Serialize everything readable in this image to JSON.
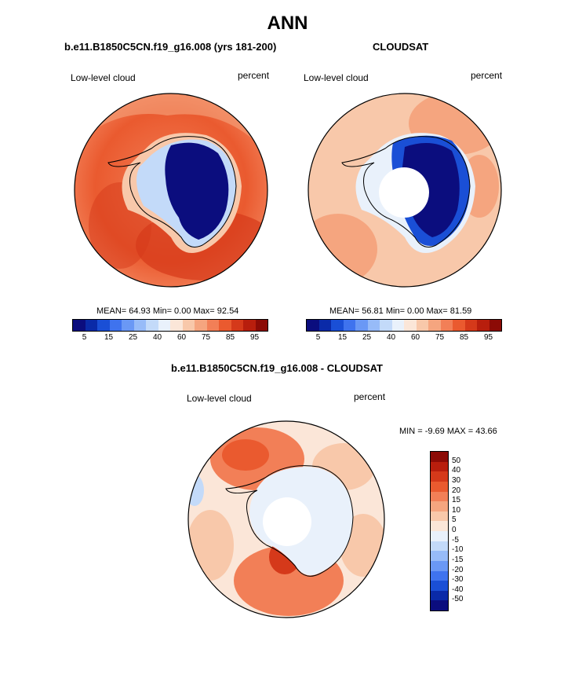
{
  "title": "ANN",
  "panels": [
    {
      "title": "b.e11.B1850C5CN.f19_g16.008 (yrs 181-200)",
      "left_label": "Low-level cloud",
      "right_label": "percent",
      "stats": "MEAN= 64.93  Min=   0.00  Max=  92.54"
    },
    {
      "title": "CLOUDSAT",
      "left_label": "Low-level cloud",
      "right_label": "percent",
      "stats": "MEAN= 56.81  Min=   0.00  Max=  81.59"
    },
    {
      "title": "b.e11.B1850C5CN.f19_g16.008 - CLOUDSAT",
      "left_label": "Low-level cloud",
      "right_label": "percent",
      "stats": "MIN =  -9.69 MAX =  43.66"
    }
  ],
  "colorbar_main": {
    "colors": [
      "#0b0d7e",
      "#0a2aa8",
      "#1a4fd6",
      "#3f73ee",
      "#6a98f5",
      "#97bbf8",
      "#c3daf9",
      "#e9f1fb",
      "#fbe6d8",
      "#f8c8aa",
      "#f5a57f",
      "#f27f57",
      "#ea5a2f",
      "#d5391a",
      "#b81e0d",
      "#8c0b06"
    ],
    "tick_labels": [
      "5",
      "15",
      "25",
      "40",
      "60",
      "75",
      "85",
      "95"
    ]
  },
  "colorbar_diff": {
    "colors": [
      "#8c0b06",
      "#b81e0d",
      "#d5391a",
      "#ea5a2f",
      "#f27f57",
      "#f5a57f",
      "#f8c8aa",
      "#fbe6d8",
      "#e9f1fb",
      "#c3daf9",
      "#97bbf8",
      "#6a98f5",
      "#3f73ee",
      "#1a4fd6",
      "#0a2aa8",
      "#0b0d7e"
    ],
    "tick_labels": [
      "50",
      "40",
      "30",
      "20",
      "15",
      "10",
      "5",
      "0",
      "-5",
      "-10",
      "-15",
      "-20",
      "-30",
      "-40",
      "-50"
    ]
  },
  "chart_data": [
    {
      "type": "heatmap",
      "title": "b.e11.B1850C5CN.f19_g16.008 (yrs 181-200)",
      "variable": "Low-level cloud",
      "units": "percent",
      "mean": 64.93,
      "min": 0.0,
      "max": 92.54,
      "levels": [
        5,
        10,
        15,
        20,
        25,
        30,
        40,
        50,
        60,
        70,
        75,
        80,
        85,
        90,
        95
      ]
    },
    {
      "type": "heatmap",
      "title": "CLOUDSAT",
      "variable": "Low-level cloud",
      "units": "percent",
      "mean": 56.81,
      "min": 0.0,
      "max": 81.59,
      "levels": [
        5,
        10,
        15,
        20,
        25,
        30,
        40,
        50,
        60,
        70,
        75,
        80,
        85,
        90,
        95
      ]
    },
    {
      "type": "heatmap",
      "title": "b.e11.B1850C5CN.f19_g16.008 - CLOUDSAT",
      "variable": "Low-level cloud",
      "units": "percent",
      "min": -9.69,
      "max": 43.66,
      "levels": [
        -50,
        -40,
        -30,
        -20,
        -15,
        -10,
        -5,
        0,
        5,
        10,
        15,
        20,
        30,
        40,
        50
      ]
    }
  ]
}
